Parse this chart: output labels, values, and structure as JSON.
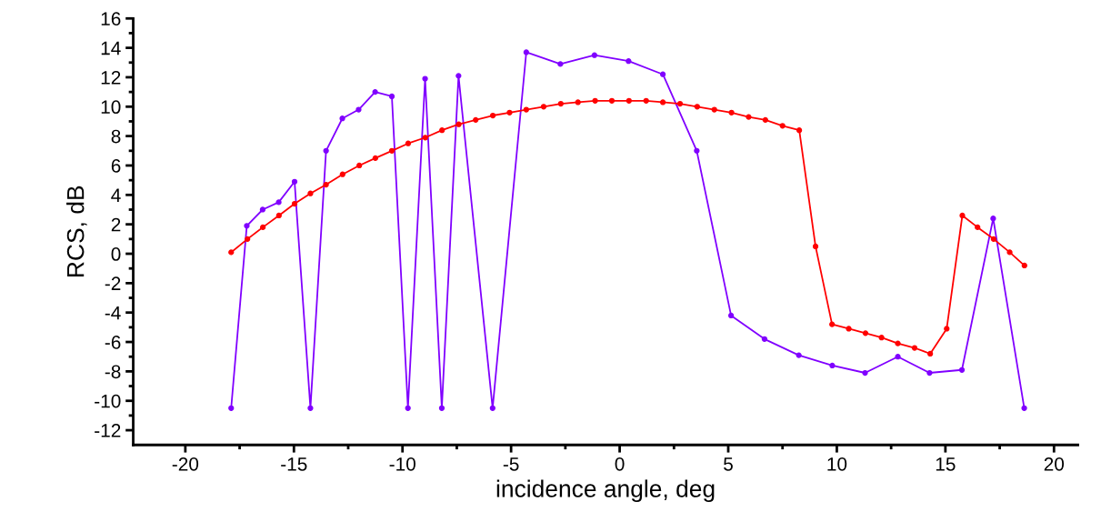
{
  "chart_data": {
    "type": "line",
    "xlabel": "incidence angle, deg",
    "ylabel": "RCS, dB",
    "marker": "circle",
    "line_style": "solid",
    "grid": false,
    "xlim": [
      -22.4,
      21.1
    ],
    "ylim": [
      -13,
      16
    ],
    "xticks": [
      -20,
      {
        "value": -17.5,
        "label": null
      },
      -15,
      {
        "value": -12.5,
        "label": null
      },
      -10,
      {
        "value": -7.5,
        "label": null
      },
      -5,
      {
        "value": -2.5,
        "label": null
      },
      0,
      {
        "value": 2.5,
        "label": null
      },
      5,
      {
        "value": 7.5,
        "label": null
      },
      10,
      {
        "value": 12.5,
        "label": null
      },
      15,
      {
        "value": 17.5,
        "label": null
      },
      20
    ],
    "yticks": [
      -12,
      {
        "value": -11,
        "label": null
      },
      -10,
      {
        "value": -9,
        "label": null
      },
      -8,
      {
        "value": -7,
        "label": null
      },
      -6,
      {
        "value": -5,
        "label": null
      },
      -4,
      {
        "value": -3,
        "label": null
      },
      -2,
      {
        "value": -1,
        "label": null
      },
      0,
      {
        "value": 1,
        "label": null
      },
      2,
      {
        "value": 3,
        "label": null
      },
      4,
      {
        "value": 5,
        "label": null
      },
      6,
      {
        "value": 7,
        "label": null
      },
      8,
      {
        "value": 9,
        "label": null
      },
      10,
      {
        "value": 11,
        "label": null
      },
      12,
      {
        "value": 13,
        "label": null
      },
      14,
      {
        "value": 15,
        "label": null
      },
      16
    ],
    "series": [
      {
        "color": "#8000ff",
        "x": [
          -17.89,
          -17.17,
          -16.44,
          -15.7,
          -14.97,
          -14.24,
          -13.52,
          -12.77,
          -12.02,
          -11.26,
          -10.49,
          -9.75,
          -8.96,
          -8.19,
          -7.42,
          -5.85,
          -4.3,
          -2.73,
          -1.16,
          0.41,
          1.99,
          3.55,
          5.13,
          6.67,
          8.25,
          9.79,
          11.3,
          12.81,
          14.27,
          15.76,
          17.2,
          18.63
        ],
        "values": [
          -10.5,
          1.9,
          3.0,
          3.5,
          4.9,
          -10.5,
          7.0,
          9.2,
          9.8,
          11.0,
          10.7,
          -10.5,
          11.9,
          -10.5,
          12.1,
          -10.5,
          13.7,
          12.9,
          13.5,
          13.1,
          12.2,
          7.0,
          -4.2,
          -5.8,
          -6.9,
          -7.6,
          -8.1,
          -7.0,
          -8.1,
          -7.9,
          2.4,
          -10.5
        ]
      },
      {
        "color": "#ff0000",
        "x": [
          -17.89,
          -17.14,
          -16.43,
          -15.69,
          -14.97,
          -14.24,
          -13.52,
          -12.76,
          -11.99,
          -11.25,
          -10.49,
          -9.74,
          -8.95,
          -8.18,
          -7.41,
          -6.63,
          -5.84,
          -5.07,
          -4.3,
          -3.5,
          -2.71,
          -1.92,
          -1.13,
          -0.36,
          0.43,
          1.22,
          1.99,
          2.78,
          3.57,
          4.36,
          5.15,
          5.94,
          6.71,
          7.5,
          8.27,
          9.02,
          9.78,
          10.55,
          11.32,
          12.06,
          12.81,
          13.58,
          14.3,
          15.06,
          15.78,
          16.48,
          17.22,
          17.96,
          18.64
        ],
        "values": [
          0.1,
          1.0,
          1.8,
          2.6,
          3.4,
          4.1,
          4.7,
          5.4,
          6.0,
          6.5,
          7.0,
          7.5,
          7.9,
          8.4,
          8.8,
          9.1,
          9.4,
          9.6,
          9.8,
          10.0,
          10.2,
          10.3,
          10.4,
          10.4,
          10.4,
          10.4,
          10.3,
          10.2,
          10.0,
          9.8,
          9.6,
          9.3,
          9.1,
          8.7,
          8.4,
          0.5,
          -4.8,
          -5.1,
          -5.4,
          -5.7,
          -6.1,
          -6.4,
          -6.8,
          -5.1,
          2.6,
          1.8,
          1.0,
          0.1,
          -0.8
        ]
      }
    ]
  }
}
